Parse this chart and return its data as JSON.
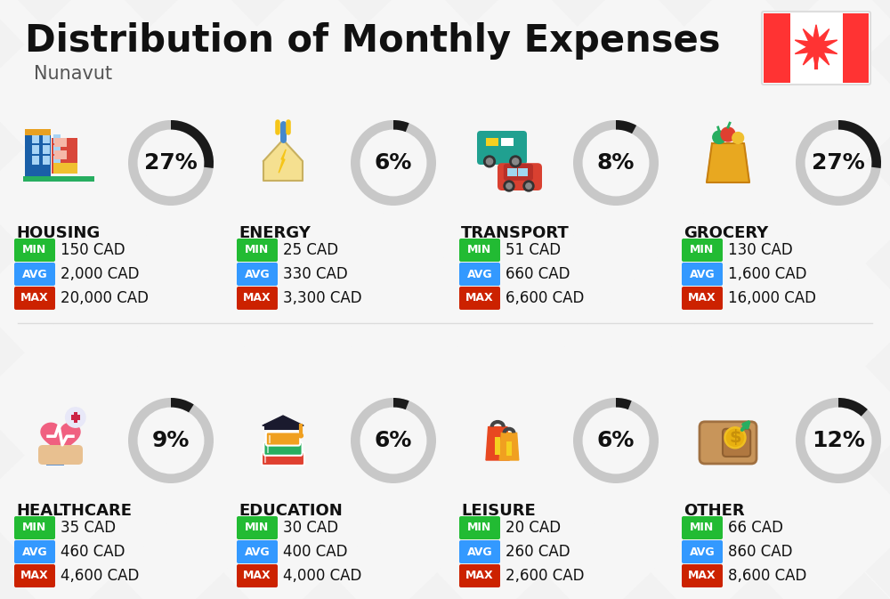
{
  "title": "Distribution of Monthly Expenses",
  "subtitle": "Nunavut",
  "background_color": "#f2f2f2",
  "categories": [
    {
      "name": "HOUSING",
      "percent": 27,
      "min": "150 CAD",
      "avg": "2,000 CAD",
      "max": "20,000 CAD",
      "icon": "housing"
    },
    {
      "name": "ENERGY",
      "percent": 6,
      "min": "25 CAD",
      "avg": "330 CAD",
      "max": "3,300 CAD",
      "icon": "energy"
    },
    {
      "name": "TRANSPORT",
      "percent": 8,
      "min": "51 CAD",
      "avg": "660 CAD",
      "max": "6,600 CAD",
      "icon": "transport"
    },
    {
      "name": "GROCERY",
      "percent": 27,
      "min": "130 CAD",
      "avg": "1,600 CAD",
      "max": "16,000 CAD",
      "icon": "grocery"
    },
    {
      "name": "HEALTHCARE",
      "percent": 9,
      "min": "35 CAD",
      "avg": "460 CAD",
      "max": "4,600 CAD",
      "icon": "healthcare"
    },
    {
      "name": "EDUCATION",
      "percent": 6,
      "min": "30 CAD",
      "avg": "400 CAD",
      "max": "4,000 CAD",
      "icon": "education"
    },
    {
      "name": "LEISURE",
      "percent": 6,
      "min": "20 CAD",
      "avg": "260 CAD",
      "max": "2,600 CAD",
      "icon": "leisure"
    },
    {
      "name": "OTHER",
      "percent": 12,
      "min": "66 CAD",
      "avg": "860 CAD",
      "max": "8,600 CAD",
      "icon": "other"
    }
  ],
  "color_min": "#22bb33",
  "color_avg": "#3399ff",
  "color_max": "#cc2200",
  "color_label_text": "#ffffff",
  "donut_active_color": "#1a1a1a",
  "donut_bg_color": "#c8c8c8",
  "title_fontsize": 30,
  "subtitle_fontsize": 15,
  "cat_name_fontsize": 13,
  "value_fontsize": 12,
  "percent_fontsize": 18,
  "badge_fontsize": 9
}
